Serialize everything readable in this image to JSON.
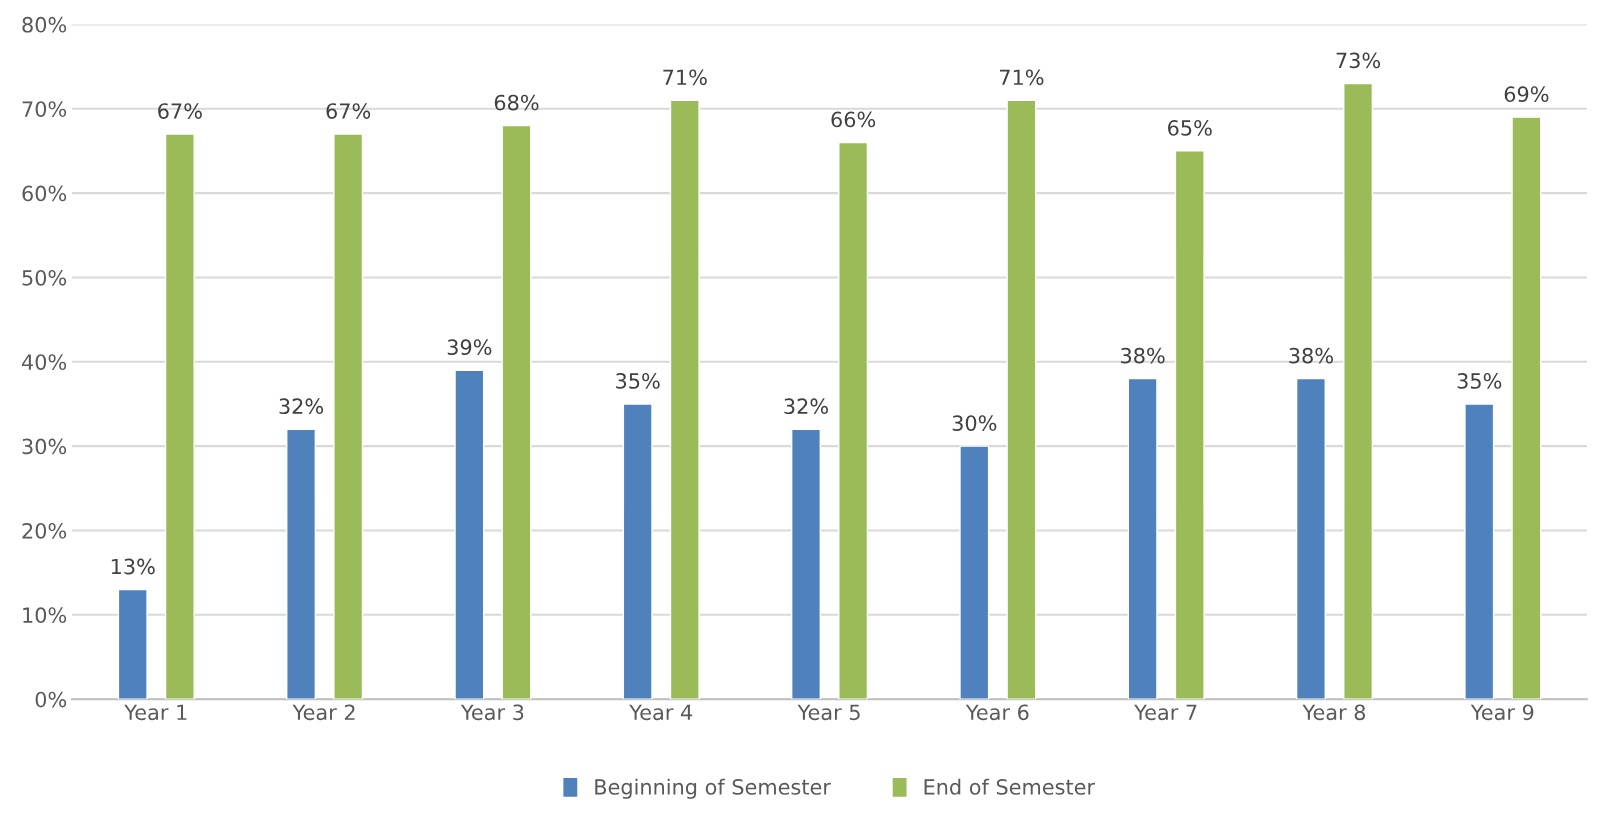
{
  "chart_data": {
    "type": "bar",
    "categories": [
      "Year 1",
      "Year 2",
      "Year 3",
      "Year 4",
      "Year 5",
      "Year 6",
      "Year 7",
      "Year 8",
      "Year 9"
    ],
    "series": [
      {
        "name": "Beginning of Semester",
        "color": "#4f81bd",
        "values": [
          13,
          32,
          39,
          35,
          32,
          30,
          38,
          38,
          35
        ],
        "value_labels": [
          "13%",
          "32%",
          "39%",
          "35%",
          "32%",
          "30%",
          "38%",
          "38%",
          "35%"
        ]
      },
      {
        "name": "End of Semester",
        "color": "#9bbb59",
        "values": [
          67,
          67,
          68,
          71,
          66,
          71,
          65,
          73,
          69
        ],
        "value_labels": [
          "67%",
          "67%",
          "68%",
          "71%",
          "66%",
          "71%",
          "65%",
          "73%",
          "69%"
        ]
      }
    ],
    "ylim": [
      0,
      80
    ],
    "yticks": [
      {
        "value": 0,
        "label": "0%"
      },
      {
        "value": 10,
        "label": "10%"
      },
      {
        "value": 20,
        "label": "20%"
      },
      {
        "value": 30,
        "label": "30%"
      },
      {
        "value": 40,
        "label": "40%"
      },
      {
        "value": 50,
        "label": "50%"
      },
      {
        "value": 60,
        "label": "60%"
      },
      {
        "value": 70,
        "label": "70%"
      },
      {
        "value": 80,
        "label": "80%"
      }
    ],
    "grid": "y",
    "legend": "bottom"
  }
}
